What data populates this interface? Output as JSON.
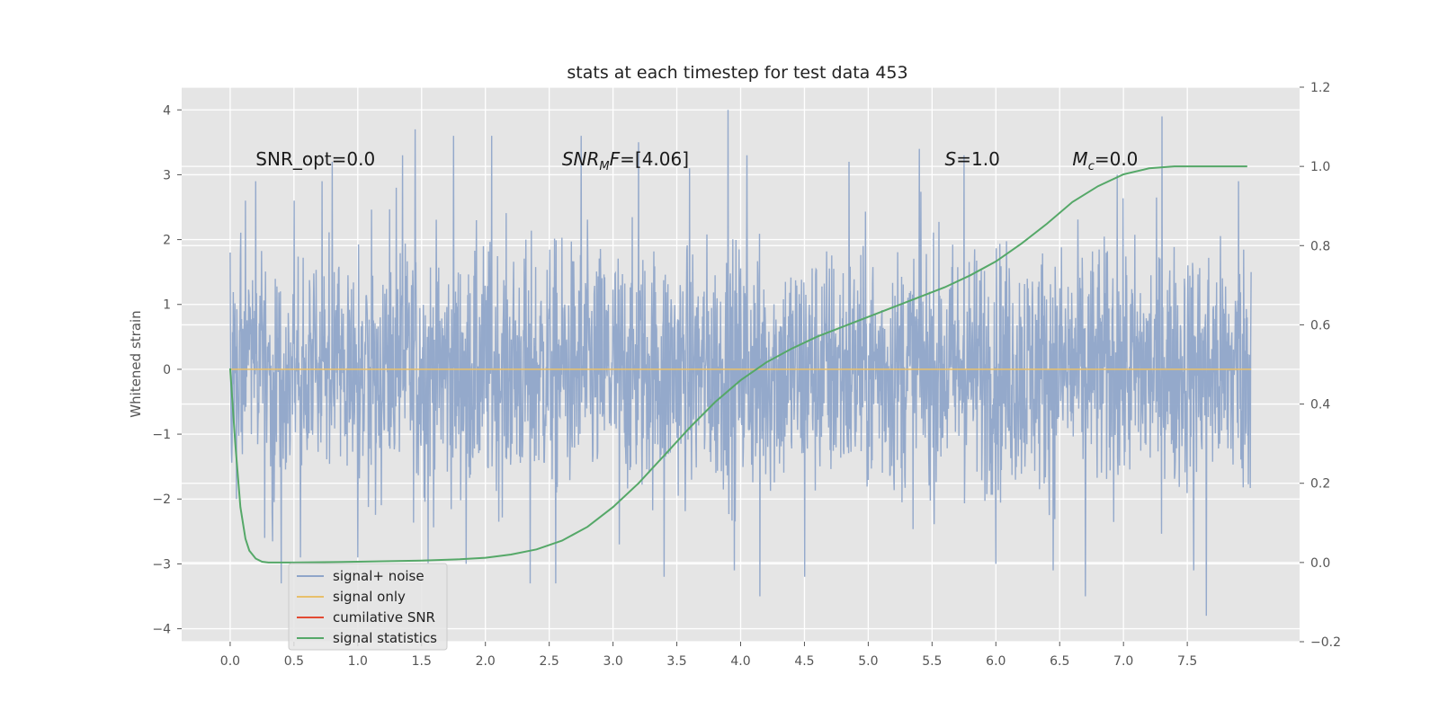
{
  "chart_data": {
    "type": "line",
    "title": "stats at each timestep for test data 453",
    "xlabel": "",
    "ylabel": "Whitened strain",
    "y2label": "",
    "xlim": [
      -0.38,
      8.38
    ],
    "ylim": [
      -4.2,
      4.35
    ],
    "y2lim": [
      -0.2,
      1.2
    ],
    "xticks": [
      "0.0",
      "0.5",
      "1.0",
      "1.5",
      "2.0",
      "2.5",
      "3.0",
      "3.5",
      "4.0",
      "4.5",
      "5.0",
      "5.5",
      "6.0",
      "6.5",
      "7.0",
      "7.5"
    ],
    "yticks": [
      "4",
      "3",
      "2",
      "1",
      "0",
      "−1",
      "−2",
      "−3",
      "−4"
    ],
    "y2ticks": [
      "1.2",
      "1.0",
      "0.8",
      "0.6",
      "0.4",
      "0.2",
      "0.0",
      "−0.2"
    ],
    "grid": true,
    "legend_position": "lower-left",
    "annotations": [
      {
        "text": "SNR_opt=0.0",
        "x": 0.2
      },
      {
        "text": "SNR_MF=[4.06]",
        "x": 2.6
      },
      {
        "text": "S=1.0",
        "x": 5.6
      },
      {
        "text": "M_c=0.0",
        "x": 6.6
      }
    ],
    "series": [
      {
        "name": "signal+ noise",
        "axis": "left",
        "color": "#8fa5c9",
        "description": "whitened noise strain, roughly gaussian, amplitude mostly within ±2",
        "x_range": [
          0.0,
          8.0
        ],
        "peak_values": [
          [
            0.0,
            1.8
          ],
          [
            0.05,
            -2.0
          ],
          [
            0.12,
            2.6
          ],
          [
            0.2,
            2.9
          ],
          [
            0.27,
            -2.6
          ],
          [
            0.4,
            -3.3
          ],
          [
            0.5,
            2.6
          ],
          [
            0.55,
            -2.9
          ],
          [
            0.72,
            2.9
          ],
          [
            0.8,
            3.2
          ],
          [
            1.0,
            -2.9
          ],
          [
            1.3,
            2.8
          ],
          [
            1.35,
            3.3
          ],
          [
            1.45,
            3.7
          ],
          [
            1.55,
            -3.0
          ],
          [
            1.75,
            3.6
          ],
          [
            1.85,
            -3.0
          ],
          [
            2.05,
            3.6
          ],
          [
            2.35,
            -3.3
          ],
          [
            2.55,
            -3.3
          ],
          [
            2.75,
            3.6
          ],
          [
            3.05,
            -2.7
          ],
          [
            3.2,
            3.5
          ],
          [
            3.4,
            -3.2
          ],
          [
            3.6,
            3.1
          ],
          [
            3.9,
            4.0
          ],
          [
            3.95,
            -3.1
          ],
          [
            4.05,
            3.3
          ],
          [
            4.15,
            -3.5
          ],
          [
            4.5,
            3.1
          ],
          [
            4.5,
            -3.2
          ],
          [
            4.85,
            3.2
          ],
          [
            5.4,
            3.4
          ],
          [
            5.75,
            3.3
          ],
          [
            6.0,
            -3.0
          ],
          [
            6.45,
            -3.1
          ],
          [
            6.7,
            -3.5
          ],
          [
            6.95,
            3.0
          ],
          [
            7.3,
            3.9
          ],
          [
            7.55,
            -3.1
          ],
          [
            7.65,
            -3.8
          ],
          [
            7.9,
            2.9
          ],
          [
            8.0,
            1.5
          ]
        ]
      },
      {
        "name": "signal only",
        "axis": "left",
        "color": "#e8c06b",
        "x": [
          0.0,
          8.0
        ],
        "values": [
          0.0,
          0.0
        ]
      },
      {
        "name": "cumilative SNR",
        "axis": "left",
        "color": "#e24a33",
        "x": [],
        "values": []
      },
      {
        "name": "signal statistics",
        "axis": "right",
        "color": "#55a868",
        "x": [
          0.0,
          0.04,
          0.08,
          0.1,
          0.12,
          0.15,
          0.2,
          0.25,
          0.3,
          0.5,
          1.0,
          1.5,
          1.8,
          2.0,
          2.2,
          2.4,
          2.6,
          2.8,
          3.0,
          3.2,
          3.4,
          3.6,
          3.8,
          4.0,
          4.2,
          4.4,
          4.6,
          4.8,
          5.0,
          5.2,
          5.4,
          5.6,
          5.8,
          6.0,
          6.2,
          6.4,
          6.6,
          6.8,
          7.0,
          7.2,
          7.4,
          7.6,
          7.8,
          7.97
        ],
        "values": [
          0.49,
          0.3,
          0.14,
          0.1,
          0.06,
          0.03,
          0.01,
          0.002,
          0.0,
          0.0,
          0.002,
          0.005,
          0.008,
          0.012,
          0.02,
          0.033,
          0.055,
          0.09,
          0.14,
          0.2,
          0.27,
          0.34,
          0.405,
          0.46,
          0.505,
          0.54,
          0.57,
          0.595,
          0.62,
          0.645,
          0.67,
          0.695,
          0.725,
          0.76,
          0.805,
          0.855,
          0.91,
          0.95,
          0.98,
          0.995,
          1.0,
          1.0,
          1.0,
          1.0
        ]
      }
    ]
  }
}
